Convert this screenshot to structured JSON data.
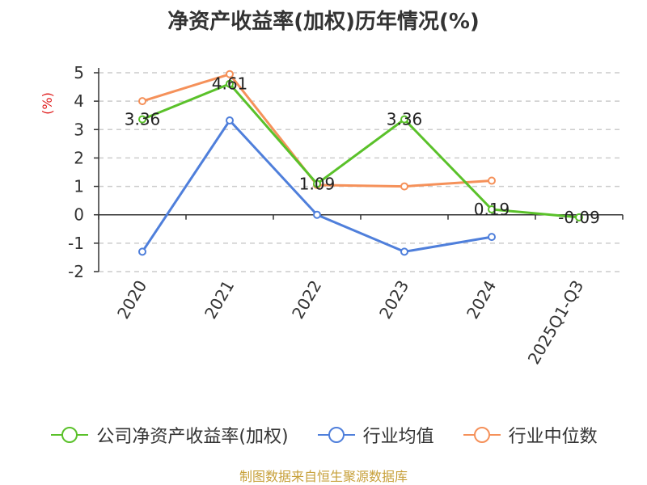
{
  "chart_data": {
    "type": "line",
    "title": "净资产收益率(加权)历年情况(%)",
    "ylabel": "(%)",
    "categories": [
      "2020",
      "2021",
      "2022",
      "2023",
      "2024",
      "2025Q1-Q3"
    ],
    "yticks": [
      "5",
      "4",
      "3",
      "2",
      "1",
      "0",
      "-1",
      "-2"
    ],
    "ylim": [
      -2,
      5
    ],
    "grid": true,
    "legend_position": "bottom",
    "series": [
      {
        "name": "公司净资产收益率(加权)",
        "color": "#5ac12a",
        "values": [
          3.36,
          4.61,
          1.09,
          3.36,
          0.19,
          -0.09
        ],
        "labels": [
          "3.36",
          "4.61",
          "1.09",
          "3.36",
          "0.19",
          "-0.09"
        ]
      },
      {
        "name": "行业均值",
        "color": "#4f7fdb",
        "values": [
          -1.3,
          3.32,
          0.0,
          -1.3,
          -0.78,
          null
        ]
      },
      {
        "name": "行业中位数",
        "color": "#f5915a",
        "values": [
          4.0,
          4.95,
          1.05,
          1.0,
          1.2,
          null
        ]
      }
    ]
  },
  "footer": {
    "source": "制图数据来自恒生聚源数据库"
  }
}
